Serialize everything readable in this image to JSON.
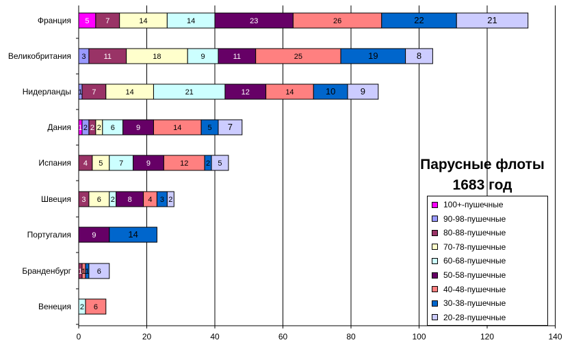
{
  "chart_data": {
    "type": "bar",
    "orientation": "horizontal",
    "stacked": true,
    "title": "Парусные флоты 1683 год",
    "title_lines": [
      "Парусные флоты",
      "1683 год"
    ],
    "xlim": [
      0,
      140
    ],
    "x_ticks": [
      "0",
      "20",
      "40",
      "60",
      "80",
      "100",
      "120",
      "140"
    ],
    "grid": "vertical",
    "legend_position": "bottom-right",
    "categories": [
      "Франция",
      "Великобритания",
      "Нидерланды",
      "Дания",
      "Испания",
      "Швеция",
      "Португалия",
      "Бранденбург",
      "Венеция"
    ],
    "series": [
      {
        "name": "100+-пушечные",
        "color": "#ff00ff",
        "label_color": "#ffffff",
        "values": [
          5,
          0,
          0,
          1,
          0,
          0,
          0,
          0,
          0
        ]
      },
      {
        "name": "90-98-пушечные",
        "color": "#9999ff",
        "label_color": "#000000",
        "values": [
          0,
          3,
          1,
          2,
          0,
          0,
          0,
          0,
          0
        ]
      },
      {
        "name": "80-88-пушечные",
        "color": "#993366",
        "label_color": "#ffffff",
        "values": [
          7,
          11,
          7,
          2,
          4,
          3,
          0,
          1,
          0
        ]
      },
      {
        "name": "70-78-пушечные",
        "color": "#ffffcc",
        "label_color": "#000000",
        "values": [
          14,
          18,
          14,
          2,
          5,
          6,
          0,
          0,
          0
        ]
      },
      {
        "name": "60-68-пушечные",
        "color": "#ccffff",
        "label_color": "#000000",
        "values": [
          14,
          9,
          21,
          6,
          7,
          2,
          0,
          0,
          2
        ]
      },
      {
        "name": "50-58-пушечные",
        "color": "#660066",
        "label_color": "#ffffff",
        "values": [
          23,
          11,
          12,
          9,
          9,
          8,
          9,
          0,
          0
        ]
      },
      {
        "name": "40-48-пушечные",
        "color": "#ff8080",
        "label_color": "#000000",
        "values": [
          26,
          25,
          14,
          14,
          12,
          4,
          0,
          1,
          6
        ]
      },
      {
        "name": "30-38-пушечные",
        "color": "#0066cc",
        "label_color": "#000000",
        "values": [
          22,
          19,
          10,
          5,
          2,
          3,
          14,
          1,
          0
        ]
      },
      {
        "name": "20-28-пушечные",
        "color": "#ccccff",
        "label_color": "#000000",
        "values": [
          21,
          8,
          9,
          7,
          5,
          2,
          0,
          6,
          0
        ]
      }
    ],
    "label_shown": [
      [
        true,
        false,
        true,
        true,
        true,
        true,
        true,
        true,
        true
      ],
      [
        false,
        true,
        true,
        true,
        true,
        true,
        true,
        true,
        true
      ],
      [
        false,
        true,
        true,
        true,
        true,
        true,
        true,
        true,
        true
      ],
      [
        true,
        true,
        true,
        true,
        true,
        true,
        true,
        true,
        true
      ],
      [
        false,
        false,
        true,
        true,
        true,
        true,
        true,
        true,
        true
      ],
      [
        false,
        false,
        true,
        true,
        true,
        true,
        true,
        true,
        true
      ],
      [
        false,
        false,
        false,
        false,
        false,
        true,
        false,
        true,
        false
      ],
      [
        false,
        false,
        true,
        false,
        false,
        false,
        true,
        true,
        true
      ],
      [
        false,
        false,
        false,
        false,
        true,
        false,
        true,
        false,
        false
      ]
    ],
    "values_text": [
      [
        "5",
        "",
        "7",
        "14",
        "14",
        "23",
        "26",
        "22",
        "21"
      ],
      [
        "",
        "3",
        "11",
        "18",
        "9",
        "11",
        "25",
        "19",
        "8"
      ],
      [
        "",
        "1",
        "7",
        "14",
        "21",
        "12",
        "14",
        "10",
        "9"
      ],
      [
        "1",
        "2",
        "2",
        "2",
        "6",
        "9",
        "14",
        "5",
        "7"
      ],
      [
        "",
        "",
        "4",
        "5",
        "7",
        "9",
        "12",
        "2",
        "5"
      ],
      [
        "",
        "",
        "3",
        "6",
        "2",
        "8",
        "4",
        "3",
        "2"
      ],
      [
        "",
        "",
        "",
        "",
        "",
        "9",
        "",
        "14",
        ""
      ],
      [
        "",
        "",
        "1",
        "",
        "",
        "",
        "1",
        "1",
        "6"
      ],
      [
        "",
        "",
        "",
        "",
        "2",
        "",
        "6",
        "",
        ""
      ]
    ]
  }
}
